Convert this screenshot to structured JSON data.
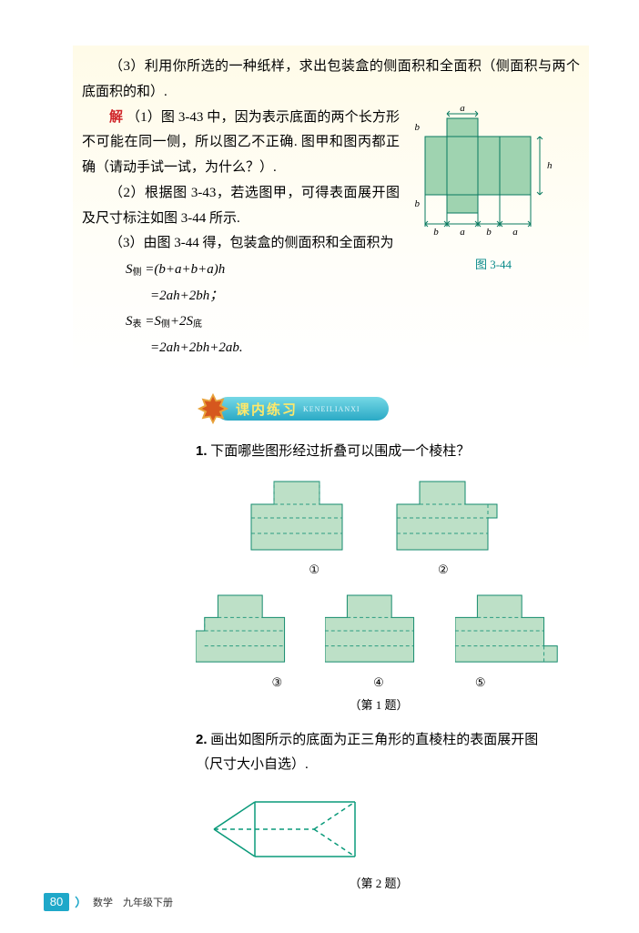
{
  "solution": {
    "q3": "（3）利用你所选的一种纸样，求出包装盒的侧面积和全面积（侧面积与两个底面积的和）.",
    "ans_label": "解",
    "ans1": "（1）图 3-43 中，因为表示底面的两个长方形不可能在同一侧，所以图乙不正确. 图甲和图丙都正确（请动手试一试，为什么？）.",
    "ans2": "（2）根据图 3-43，若选图甲，可得表面展开图及尺寸标注如图 3-44 所示.",
    "ans3": "（3）由图 3-44 得，包装盒的侧面积和全面积为",
    "formulas": {
      "l1a": "S",
      "l1sub": "侧",
      "l1b": " =(b+a+b+a)h",
      "l2": "=2ah+2bh；",
      "l3a": "S",
      "l3sub": "表",
      "l3b": " =S",
      "l3sub2": "侧",
      "l3c": "+2S",
      "l3sub3": "底",
      "l4": "=2ah+2bh+2ab."
    },
    "fig344": {
      "caption": "图 3-44",
      "fill": "#9fd3b0",
      "stroke": "#0a7a60",
      "labels": {
        "a": "a",
        "b": "b",
        "h": "h"
      },
      "bw": 24,
      "aw": 34,
      "bh": 20,
      "hh": 64
    }
  },
  "banner": {
    "title": "课内练习",
    "pinyin": "KENEILIANXI"
  },
  "exercises": {
    "q1": {
      "num": "1.",
      "text": "下面哪些图形经过折叠可以围成一个棱柱？",
      "labels": [
        "①",
        "②",
        "③",
        "④",
        "⑤"
      ],
      "caption": "（第 1 题）",
      "shape_fill": "#bde0c7",
      "shape_stroke": "#138a6c",
      "dash": "#2a9b80"
    },
    "q2": {
      "num": "2.",
      "text": "画出如图所示的底面为正三角形的直棱柱的表面展开图（尺寸大小自选）.",
      "caption": "（第 2 题）",
      "stroke": "#0a9a7a",
      "fill": "none"
    }
  },
  "footer": {
    "page": "80",
    "book": "数学　九年级下册"
  },
  "star_colors": {
    "outer": "#e8a23a",
    "inner": "#d6571e"
  }
}
